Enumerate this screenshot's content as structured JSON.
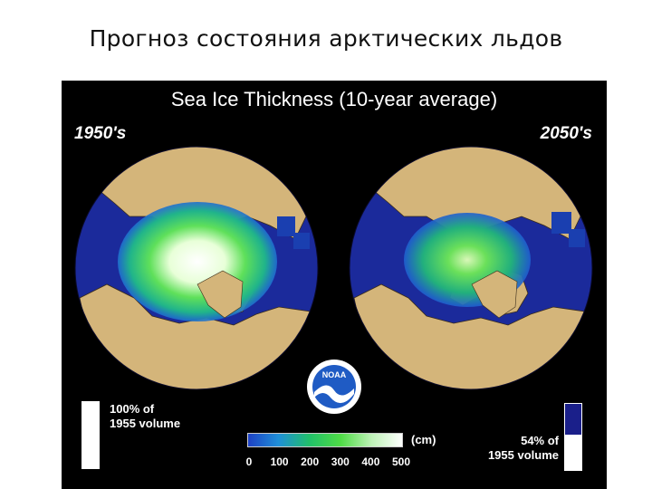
{
  "slide": {
    "title": "Прогноз состояния арктических льдов"
  },
  "figure": {
    "title": "Sea Ice Thickness (10-year average)",
    "left_label": "1950's",
    "right_label": "2050's",
    "logo_text": "NOAA",
    "left_volume": {
      "line1": "100% of",
      "line2": "1955 volume",
      "fraction": 1.0
    },
    "right_volume": {
      "line1": "54% of",
      "line2": "1955 volume",
      "fraction": 0.54
    },
    "colorbar": {
      "unit": "(cm)",
      "ticks": [
        "0",
        "100",
        "200",
        "300",
        "400",
        "500"
      ],
      "colors": [
        "#1e3fc4",
        "#1f8fd8",
        "#21c06a",
        "#4fdc46",
        "#bff2b8",
        "#ffffff"
      ]
    },
    "colors": {
      "ocean": "#1b2a9b",
      "land": "#d4b57a",
      "coast": "#3a2c1a",
      "background": "#000000"
    }
  }
}
